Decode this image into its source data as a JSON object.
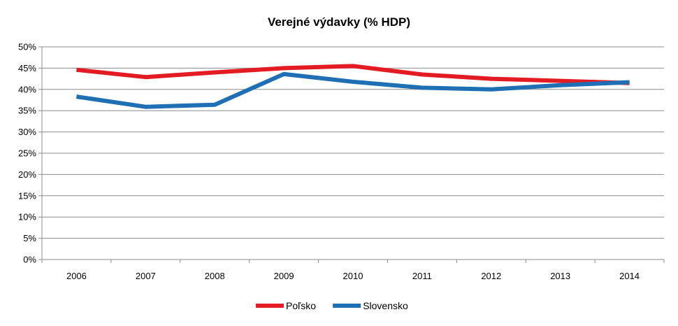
{
  "chart_data": {
    "type": "line",
    "title": "Verejné výdavky (% HDP)",
    "xlabel": "",
    "ylabel": "",
    "categories": [
      "2006",
      "2007",
      "2008",
      "2009",
      "2010",
      "2011",
      "2012",
      "2013",
      "2014"
    ],
    "ylim": [
      0,
      50
    ],
    "yticks": [
      0,
      5,
      10,
      15,
      20,
      25,
      30,
      35,
      40,
      45,
      50
    ],
    "ytick_labels": [
      "0%",
      "5%",
      "10%",
      "15%",
      "20%",
      "25%",
      "30%",
      "35%",
      "40%",
      "45%",
      "50%"
    ],
    "grid": true,
    "legend_position": "bottom",
    "series": [
      {
        "name": "Poľsko",
        "color": "#e31b23",
        "values": [
          44.6,
          42.9,
          44.0,
          45.0,
          45.5,
          43.5,
          42.5,
          42.0,
          41.5
        ]
      },
      {
        "name": "Slovensko",
        "color": "#1f6fb5",
        "values": [
          38.3,
          35.9,
          36.4,
          43.6,
          41.8,
          40.4,
          40.0,
          41.0,
          41.7
        ]
      }
    ]
  }
}
